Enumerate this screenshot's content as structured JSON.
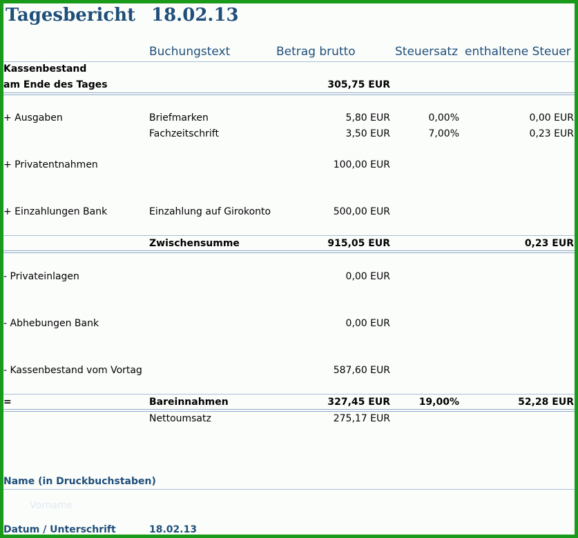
{
  "title": "Tagesbericht",
  "date": "18.02.13",
  "columns": {
    "buchungstext": "Buchungstext",
    "betrag": "Betrag brutto",
    "steuersatz": "Steuersatz",
    "steuer": "enthaltene Steuer"
  },
  "kassenbestand": {
    "line1": "Kassenbestand",
    "line2": "am Ende des Tages",
    "betrag": "305,75 EUR"
  },
  "ausgaben": {
    "label": "+ Ausgaben",
    "rows": [
      {
        "text": "Briefmarken",
        "betrag": "5,80 EUR",
        "satz": "0,00%",
        "steuer": "0,00 EUR"
      },
      {
        "text": "Fachzeitschrift",
        "betrag": "3,50 EUR",
        "satz": "7,00%",
        "steuer": "0,23 EUR"
      }
    ]
  },
  "privatentnahmen": {
    "label": "+ Privatentnahmen",
    "betrag": "100,00 EUR"
  },
  "einzahlungen": {
    "label": "+ Einzahlungen Bank",
    "text": "Einzahlung auf Girokonto",
    "betrag": "500,00 EUR"
  },
  "zwischensumme": {
    "label": "Zwischensumme",
    "betrag": "915,05 EUR",
    "steuer": "0,23 EUR"
  },
  "privateinlagen": {
    "label": "- Privateinlagen",
    "betrag": "0,00 EUR"
  },
  "abhebungen": {
    "label": "- Abhebungen Bank",
    "betrag": "0,00 EUR"
  },
  "vortag": {
    "label": "- Kassenbestand vom Vortag",
    "betrag": "587,60 EUR"
  },
  "bareinnahmen": {
    "sign": "=",
    "label": "Bareinnahmen",
    "betrag": "327,45 EUR",
    "satz": "19,00%",
    "steuer": "52,28 EUR"
  },
  "nettoumsatz": {
    "label": "Nettoumsatz",
    "betrag": "275,17 EUR"
  },
  "name_label": "Name (in Druckbuchstaben)",
  "name_placeholder": "Vorname",
  "datum_label": "Datum / Unterschrift",
  "datum_value": "18.02.13",
  "colors": {
    "border": "#1a9a1a",
    "heading": "#1f4e79",
    "rule": "#a9bfd6"
  }
}
